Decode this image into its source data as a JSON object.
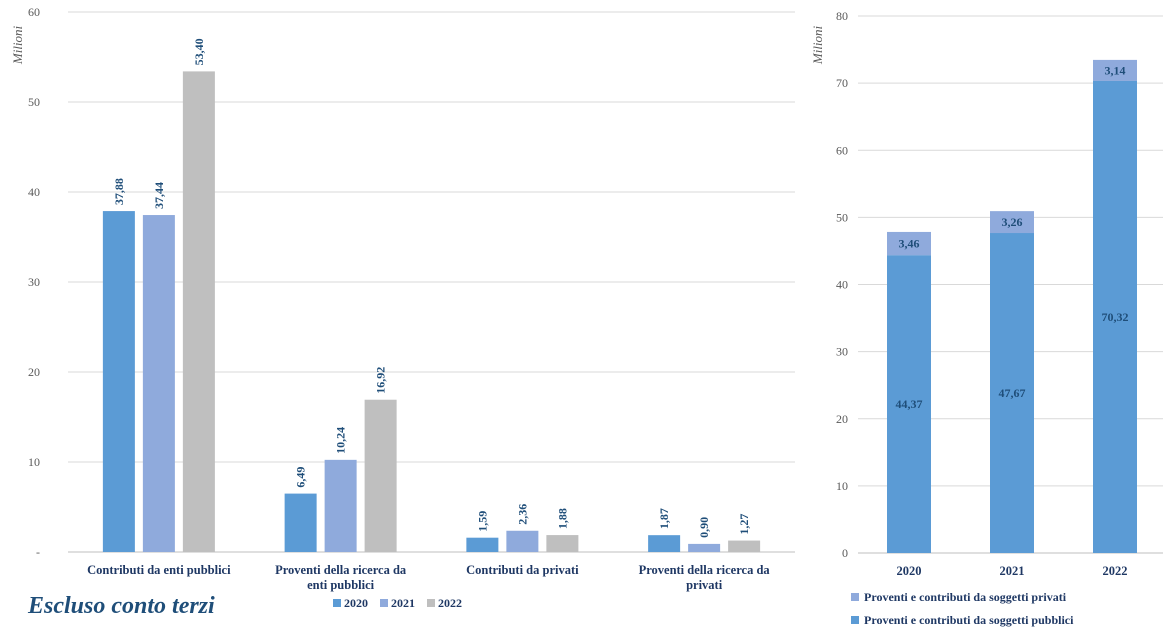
{
  "note": "Escluso conto terzi",
  "chart_data": [
    {
      "type": "bar",
      "ylabel": "Milioni",
      "ylim": [
        0,
        60
      ],
      "ytick_step": 10,
      "ytick_labels": [
        "-",
        "10",
        "20",
        "30",
        "40",
        "50",
        "60"
      ],
      "categories": [
        [
          "Contributi da enti pubblici"
        ],
        [
          "Proventi della ricerca da",
          "enti pubblici"
        ],
        [
          "Contributi da privati"
        ],
        [
          "Proventi della ricerca da",
          "privati"
        ]
      ],
      "series": [
        {
          "name": "2020",
          "color": "#5b9bd5",
          "values": [
            37.88,
            6.49,
            1.59,
            1.87
          ],
          "labels": [
            "37,88",
            "6,49",
            "1,59",
            "1,87"
          ]
        },
        {
          "name": "2021",
          "color": "#8faadc",
          "values": [
            37.44,
            10.24,
            2.36,
            0.9
          ],
          "labels": [
            "37,44",
            "10,24",
            "2,36",
            "0,90"
          ]
        },
        {
          "name": "2022",
          "color": "#bfbfbf",
          "values": [
            53.4,
            16.92,
            1.88,
            1.27
          ],
          "labels": [
            "53,40",
            "16,92",
            "1,88",
            "1,27"
          ]
        }
      ],
      "legend_position": "bottom",
      "grid": true
    },
    {
      "type": "bar",
      "stacked": true,
      "ylabel": "Milioni",
      "ylim": [
        0,
        80
      ],
      "ytick_step": 10,
      "ytick_labels": [
        "0",
        "10",
        "20",
        "30",
        "40",
        "50",
        "60",
        "70",
        "80"
      ],
      "categories": [
        "2020",
        "2021",
        "2022"
      ],
      "series": [
        {
          "name": "Proventi e contributi da soggetti pubblici",
          "color": "#5b9bd5",
          "values": [
            44.37,
            47.67,
            70.32
          ],
          "labels": [
            "44,37",
            "47,67",
            "70,32"
          ]
        },
        {
          "name": "Proventi e contributi da soggetti privati",
          "color": "#8faadc",
          "values": [
            3.46,
            3.26,
            3.14
          ],
          "labels": [
            "3,46",
            "3,26",
            "3,14"
          ]
        }
      ],
      "legend_position": "bottom",
      "grid": true
    }
  ]
}
